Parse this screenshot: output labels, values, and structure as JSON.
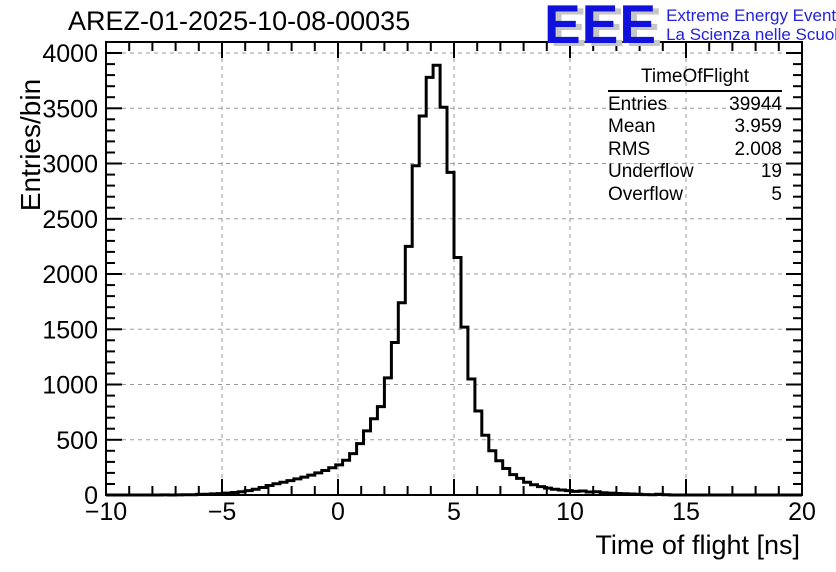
{
  "header": {
    "title": "AREZ-01-2025-10-08-00035"
  },
  "logo": {
    "acronym": "EEE",
    "line1": "Extreme Energy Events",
    "line2": "La Scienza nelle Scuole",
    "acronym_color": "#1111dd",
    "text_color": "#2222dd",
    "shadow_color": "#c6c6c6"
  },
  "stats": {
    "title": "TimeOfFlight",
    "rows": [
      {
        "label": "Entries",
        "value": "39944"
      },
      {
        "label": "Mean",
        "value": "3.959"
      },
      {
        "label": "RMS",
        "value": "2.008"
      },
      {
        "label": "Underflow",
        "value": "19"
      },
      {
        "label": "Overflow",
        "value": "5"
      }
    ]
  },
  "chart_data": {
    "type": "bar",
    "subtype": "step-histogram",
    "title": "AREZ-01-2025-10-08-00035",
    "xlabel": "Time of flight [ns]",
    "ylabel": "Entries/bin",
    "xlim": [
      -10,
      20
    ],
    "ylim": [
      0,
      4100
    ],
    "grid": true,
    "legend_position": "none",
    "line_color": "#000000",
    "grid_color": "#9a9a9a",
    "x_ticks": {
      "major": [
        -10,
        -5,
        0,
        5,
        10,
        15,
        20
      ],
      "labels": [
        "−10",
        "−5",
        "0",
        "5",
        "10",
        "15",
        "20"
      ],
      "minor_step": 1
    },
    "y_ticks": {
      "major": [
        0,
        500,
        1000,
        1500,
        2000,
        2500,
        3000,
        3500,
        4000
      ],
      "labels": [
        "0",
        "500",
        "1000",
        "1500",
        "2000",
        "2500",
        "3000",
        "3500",
        "4000"
      ],
      "minor_step": 100
    },
    "bins": {
      "start": -10,
      "width": 0.3,
      "counts": [
        0,
        0,
        0,
        0,
        0,
        0,
        0,
        0,
        1,
        0,
        1,
        2,
        3,
        5,
        7,
        10,
        13,
        17,
        23,
        30,
        40,
        52,
        68,
        86,
        102,
        116,
        130,
        146,
        162,
        180,
        200,
        222,
        246,
        272,
        315,
        375,
        465,
        580,
        690,
        800,
        1060,
        1380,
        1740,
        2250,
        2980,
        3430,
        3780,
        3890,
        3510,
        2920,
        2150,
        1520,
        1050,
        760,
        540,
        400,
        310,
        240,
        185,
        150,
        115,
        92,
        76,
        62,
        52,
        45,
        40,
        33,
        36,
        27,
        30,
        21,
        17,
        14,
        12,
        9,
        7,
        4,
        2,
        7,
        2,
        0,
        0,
        0,
        0,
        0,
        0,
        0,
        0,
        0,
        0,
        0,
        0,
        0,
        0,
        0,
        0,
        0,
        0,
        0
      ]
    }
  }
}
